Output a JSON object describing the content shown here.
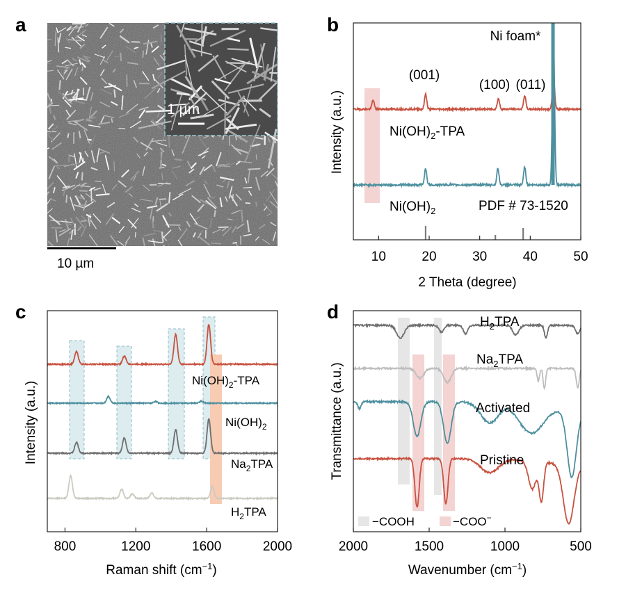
{
  "colors": {
    "red": "#c8513f",
    "teal": "#4d8f9e",
    "dark_gray": "#6e6e6e",
    "light_gray": "#bdbdbd",
    "very_light": "#cbcbc2",
    "pink_band": "#f4d3d3",
    "blue_band": "#dcecef",
    "blue_dash": "#8fbcc9",
    "orange_band": "#f7ccb3",
    "gray_band": "#e6e6e6"
  },
  "panels": {
    "a": {
      "label": "a",
      "scalebar_main": "10 µm",
      "scalebar_inset": "1 µm"
    },
    "b": {
      "label": "b",
      "chart_data": {
        "type": "line",
        "xlabel": "2 Theta (degree)",
        "ylabel": "Intensity (a.u.)",
        "xlim": [
          5,
          50
        ],
        "xticks": [
          "10",
          "20",
          "30",
          "40",
          "50"
        ],
        "series": [
          {
            "name": "Ni(OH)2-TPA",
            "color": "#c8513f",
            "peaks": [
              [
                8.9,
                0.6
              ],
              [
                19.3,
                1.0
              ],
              [
                33.7,
                0.7
              ],
              [
                38.9,
                0.9
              ],
              [
                44.6,
                2.2
              ]
            ]
          },
          {
            "name": "Ni(OH)2",
            "color": "#4d8f9e",
            "peaks": [
              [
                19.3,
                1.0
              ],
              [
                33.6,
                1.0
              ],
              [
                38.9,
                1.1
              ],
              [
                44.6,
                9.0
              ]
            ]
          }
        ],
        "reference": {
          "name": "PDF # 73-1520",
          "lines": [
            [
              19.3,
              1.0
            ],
            [
              33.1,
              0.35
            ],
            [
              38.6,
              0.85
            ]
          ]
        },
        "annotations": [
          "(001)",
          "(100)",
          "(011)",
          "Ni foam*"
        ],
        "series_labels": {
          "top_main": "Ni(OH)",
          "top_sub": "2",
          "top_tail": "-TPA",
          "bottom_main": "Ni(OH)",
          "bottom_sub": "2"
        }
      }
    },
    "c": {
      "label": "c",
      "chart_data": {
        "type": "line",
        "xlabel": "Raman shift (cm",
        "xlabel_sup": "−1",
        "xlabel_tail": ")",
        "ylabel": "Intensity (a.u.)",
        "xlim": [
          700,
          2000
        ],
        "xticks": [
          "800",
          "1200",
          "1600",
          "2000"
        ],
        "series": [
          {
            "name": "Ni(OH)2-TPA",
            "color": "#c8513f",
            "peaks": [
              [
                865,
                1.4
              ],
              [
                1135,
                0.9
              ],
              [
                1425,
                3.3
              ],
              [
                1612,
                4.4
              ]
            ]
          },
          {
            "name": "Ni(OH)2",
            "color": "#4d8f9e",
            "peaks": [
              [
                1045,
                0.8
              ],
              [
                1310,
                0.2
              ],
              [
                1570,
                0.25
              ]
            ]
          },
          {
            "name": "Na2TPA",
            "color": "#6e6e6e",
            "peaks": [
              [
                865,
                1.2
              ],
              [
                1135,
                1.7
              ],
              [
                1425,
                2.6
              ],
              [
                1612,
                3.8
              ]
            ]
          },
          {
            "name": "H2TPA",
            "color": "#cbcbc2",
            "peaks": [
              [
                832,
                2.5
              ],
              [
                1120,
                1.0
              ],
              [
                1180,
                0.5
              ],
              [
                1290,
                0.6
              ],
              [
                1632,
                1.3
              ]
            ]
          }
        ],
        "series_labels": {
          "l1_main": "Ni(OH)",
          "l1_sub": "2",
          "l1_tail": "-TPA",
          "l2_main": "Ni(OH)",
          "l2_sub": "2",
          "l3_main": "Na",
          "l3_sub": "2",
          "l3_tail": "TPA",
          "l4_main": "H",
          "l4_sub": "2",
          "l4_tail": "TPA"
        }
      }
    },
    "d": {
      "label": "d",
      "chart_data": {
        "type": "line",
        "xlabel": "Wavenumber (cm",
        "xlabel_sup": "−1",
        "xlabel_tail": ")",
        "ylabel": "Transmittance (a.u.)",
        "xlim": [
          2000,
          500
        ],
        "xticks": [
          "2000",
          "1500",
          "1000",
          "500"
        ],
        "series": [
          {
            "name": "H2TPA",
            "color": "#6e6e6e"
          },
          {
            "name": "Na2TPA",
            "color": "#bdbdbd"
          },
          {
            "name": "Activated",
            "color": "#4d8f9e"
          },
          {
            "name": "Pristine",
            "color": "#c8513f"
          }
        ],
        "series_labels": {
          "l1_main": "H",
          "l1_sub": "2",
          "l1_tail": "TPA",
          "l2_main": "Na",
          "l2_sub": "2",
          "l2_tail": "TPA",
          "l3": "Activated",
          "l4": "Pristine"
        },
        "legend": {
          "cooh": "−COOH",
          "coo": "−COO",
          "coo_sup": "−"
        }
      }
    }
  }
}
